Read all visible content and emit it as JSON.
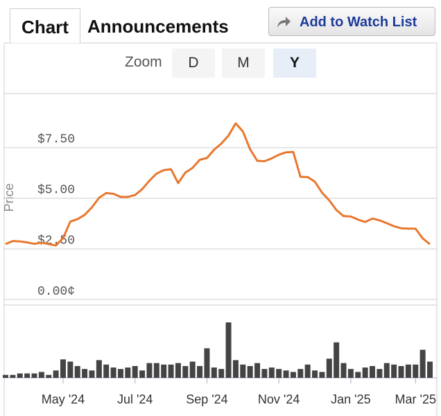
{
  "ui": {
    "tabs": [
      "Chart",
      "Announcements"
    ],
    "watch_button": "Add to Watch List",
    "zoom_label": "Zoom",
    "zoom_buttons": [
      "D",
      "M",
      "Y"
    ]
  },
  "chart_data": [
    {
      "type": "line",
      "ylabel": "Price",
      "ylim": [
        0,
        10.17
      ],
      "yticks": [
        {
          "value": 0,
          "label": "0.00¢"
        },
        {
          "value": 2.5,
          "label": "$2.50"
        },
        {
          "value": 5,
          "label": "$5.00"
        },
        {
          "value": 7.5,
          "label": "$7.50"
        }
      ],
      "grid": true,
      "series": [
        {
          "color": "#e8772e",
          "values": [
            2.74,
            2.89,
            2.87,
            2.82,
            2.75,
            2.81,
            2.74,
            2.67,
            3.03,
            3.85,
            3.97,
            4.18,
            4.55,
            5.02,
            5.26,
            5.22,
            5.07,
            5.07,
            5.16,
            5.45,
            5.87,
            6.22,
            6.39,
            6.44,
            5.75,
            6.27,
            6.5,
            6.9,
            6.99,
            7.4,
            7.7,
            8.1,
            8.7,
            8.3,
            7.42,
            6.85,
            6.83,
            6.97,
            7.15,
            7.27,
            7.29,
            6.06,
            6.05,
            5.82,
            5.28,
            4.9,
            4.42,
            4.12,
            4.1,
            3.95,
            3.83,
            4.0,
            3.91,
            3.77,
            3.62,
            3.52,
            3.5,
            3.5,
            3.02,
            2.73
          ]
        }
      ]
    },
    {
      "type": "bar",
      "color": "#444444",
      "categories": [
        null,
        null,
        null,
        null,
        null,
        null,
        null,
        null,
        "May '24",
        null,
        null,
        null,
        null,
        null,
        null,
        null,
        null,
        null,
        "Jul '24",
        null,
        null,
        null,
        null,
        null,
        null,
        null,
        null,
        null,
        "Sep '24",
        null,
        null,
        null,
        null,
        null,
        null,
        null,
        null,
        null,
        "Nov '24",
        null,
        null,
        null,
        null,
        null,
        null,
        null,
        null,
        null,
        "Jan '25",
        null,
        null,
        null,
        null,
        null,
        null,
        null,
        null,
        "Mar '25",
        null,
        null
      ],
      "values": [
        4,
        4,
        6,
        6,
        6,
        8,
        4,
        10,
        25,
        22,
        16,
        12,
        10,
        24,
        18,
        14,
        12,
        14,
        16,
        10,
        20,
        20,
        18,
        18,
        20,
        16,
        22,
        16,
        40,
        14,
        12,
        75,
        24,
        18,
        16,
        20,
        12,
        14,
        12,
        10,
        8,
        12,
        18,
        10,
        8,
        26,
        48,
        20,
        12,
        8,
        14,
        16,
        12,
        20,
        18,
        16,
        18,
        18,
        38,
        22
      ]
    }
  ]
}
